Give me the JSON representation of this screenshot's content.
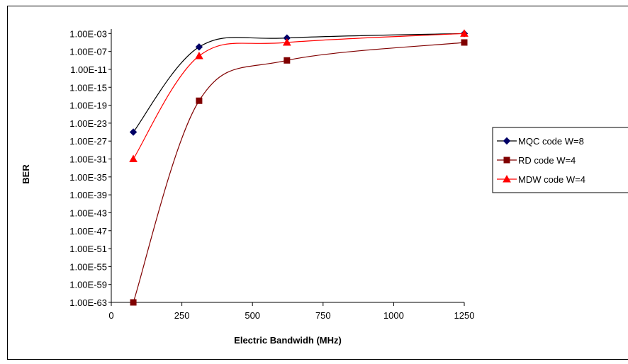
{
  "chart_data": {
    "type": "line",
    "title": "",
    "xlabel": "Electric Bandwidh (MHz)",
    "ylabel": "BER",
    "xlim": [
      0,
      1250
    ],
    "x_ticks": [
      "0",
      "250",
      "500",
      "750",
      "1000",
      "1250"
    ],
    "ylim_log10": [
      -63,
      -2
    ],
    "y_scale": "log",
    "y_ticks": [
      "1.00E-03",
      "1.00E-07",
      "1.00E-11",
      "1.00E-15",
      "1.00E-19",
      "1.00E-23",
      "1.00E-27",
      "1.00E-31",
      "1.00E-35",
      "1.00E-39",
      "1.00E-43",
      "1.00E-47",
      "1.00E-51",
      "1.00E-55",
      "1.00E-59",
      "1.00E-63"
    ],
    "grid": false,
    "legend_position": "right",
    "x": [
      78,
      311,
      622,
      1250
    ],
    "series": [
      {
        "name": "MQC code W=8",
        "color": "#000000",
        "marker": "diamond",
        "marker_color": "#000066",
        "values": [
          1e-25,
          1e-06,
          0.0001,
          0.001
        ]
      },
      {
        "name": "RD code W=4",
        "color": "#800000",
        "marker": "square",
        "marker_color": "#800000",
        "values": [
          1e-63,
          1e-18,
          1e-09,
          1e-05
        ]
      },
      {
        "name": "MDW code W=4",
        "color": "#ff0000",
        "marker": "triangle",
        "marker_color": "#ff0000",
        "values": [
          1e-31,
          1e-08,
          1e-05,
          0.001
        ]
      }
    ]
  }
}
